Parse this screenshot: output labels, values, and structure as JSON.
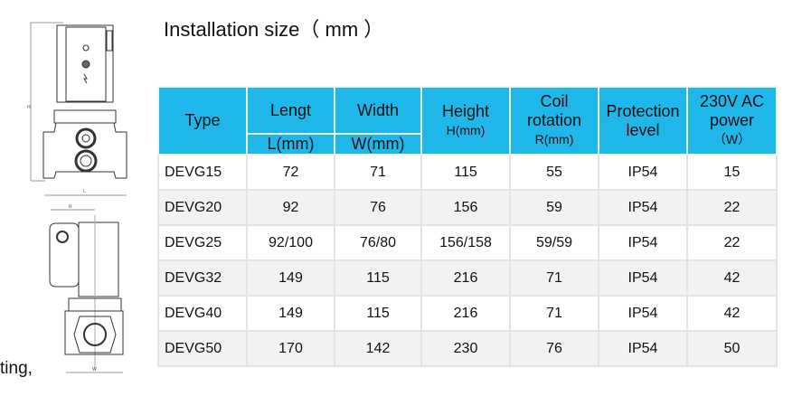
{
  "title": "Installation size（ mm ）",
  "cut_text": "ting,",
  "colors": {
    "header_bg": "#1fb6ea",
    "alt_row": "#f2f2f2"
  },
  "table": {
    "headers": {
      "type": "Type",
      "length": "Lengt",
      "length_unit": "L(mm)",
      "width": "Width",
      "width_unit": "W(mm)",
      "height": "Height",
      "height_unit": "H(mm)",
      "coil": "Coil rotation",
      "coil_unit": "R(mm)",
      "protection": "Protection level",
      "power": "230V AC power",
      "power_unit": "（W）"
    },
    "rows": [
      [
        "DEVG15",
        "72",
        "71",
        "115",
        "55",
        "IP54",
        "15"
      ],
      [
        "DEVG20",
        "92",
        "76",
        "156",
        "59",
        "IP54",
        "22"
      ],
      [
        "DEVG25",
        "92/100",
        "76/80",
        "156/158",
        "59/59",
        "IP54",
        "22"
      ],
      [
        "DEVG32",
        "149",
        "115",
        "216",
        "71",
        "IP54",
        "42"
      ],
      [
        "DEVG40",
        "149",
        "115",
        "216",
        "71",
        "IP54",
        "42"
      ],
      [
        "DEVG50",
        "170",
        "142",
        "230",
        "76",
        "IP54",
        "50"
      ]
    ]
  },
  "drawing_labels": {
    "h": "H",
    "l": "L",
    "r": "R",
    "w": "W"
  }
}
